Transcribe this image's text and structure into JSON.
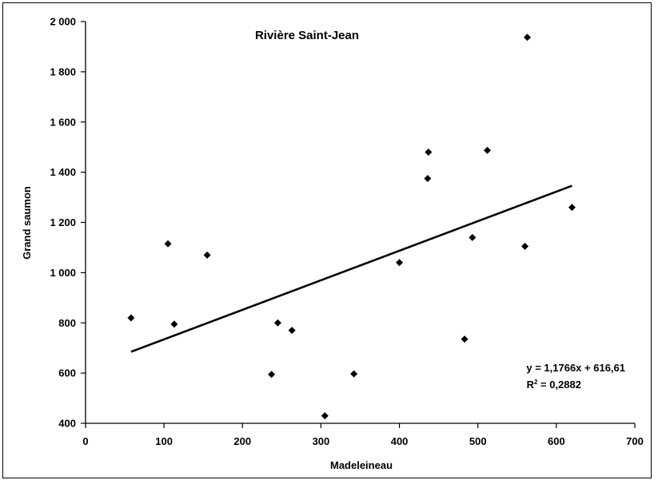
{
  "chart_data": {
    "type": "scatter",
    "title": "Rivière Saint-Jean",
    "xlabel": "Madeleineau",
    "ylabel": "Grand saumon",
    "xlim": [
      0,
      700
    ],
    "ylim": [
      400,
      2000
    ],
    "x_ticks": [
      0,
      100,
      200,
      300,
      400,
      500,
      600,
      700
    ],
    "y_ticks": [
      400,
      600,
      800,
      1000,
      1200,
      1400,
      1600,
      1800,
      2000
    ],
    "x_tick_labels": [
      "0",
      "100",
      "200",
      "300",
      "400",
      "500",
      "600",
      "700"
    ],
    "y_tick_labels": [
      "400",
      "600",
      "800",
      "1 000",
      "1 200",
      "1 400",
      "1 600",
      "1 800",
      "2 000"
    ],
    "grid": false,
    "legend": null,
    "points": [
      {
        "x": 58,
        "y": 820
      },
      {
        "x": 105,
        "y": 1115
      },
      {
        "x": 113,
        "y": 795
      },
      {
        "x": 155,
        "y": 1070
      },
      {
        "x": 237,
        "y": 595
      },
      {
        "x": 245,
        "y": 800
      },
      {
        "x": 263,
        "y": 770
      },
      {
        "x": 305,
        "y": 430
      },
      {
        "x": 342,
        "y": 597
      },
      {
        "x": 400,
        "y": 1040
      },
      {
        "x": 436,
        "y": 1375
      },
      {
        "x": 437,
        "y": 1480
      },
      {
        "x": 483,
        "y": 735
      },
      {
        "x": 493,
        "y": 1140
      },
      {
        "x": 512,
        "y": 1487
      },
      {
        "x": 560,
        "y": 1105
      },
      {
        "x": 563,
        "y": 1937
      },
      {
        "x": 620,
        "y": 1260
      }
    ],
    "trendline": {
      "type": "linear",
      "slope": 1.1766,
      "intercept": 616.61,
      "x_range": [
        58,
        620
      ],
      "equation_label": "y = 1,1766x + 616,61",
      "r2_label_prefix": "R",
      "r2_label_suffix": " = 0,2882"
    },
    "marker_color": "#000000",
    "line_color": "#000000"
  }
}
